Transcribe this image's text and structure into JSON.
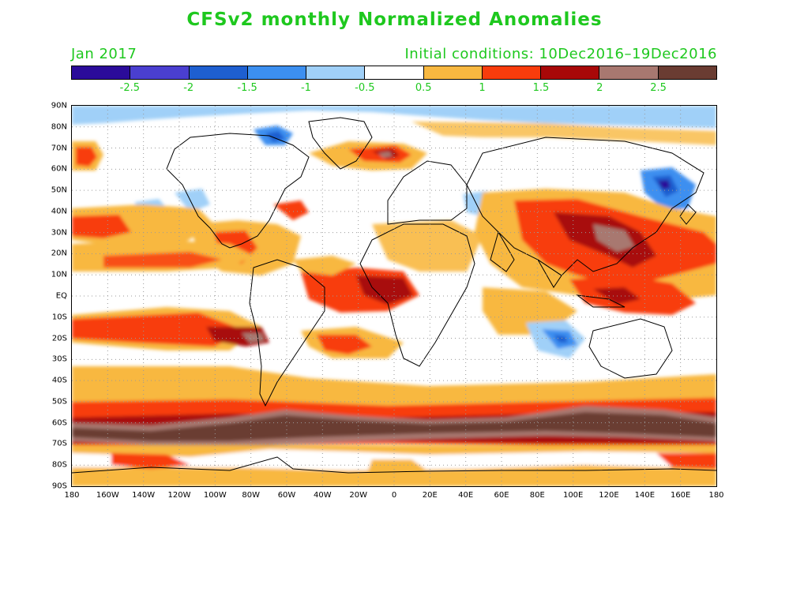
{
  "title": "CFSv2 monthly Normalized Anomalies",
  "valid_month": "Jan 2017",
  "initial_conditions": "Initial conditions: 10Dec2016–19Dec2016",
  "colorbar": {
    "colors": [
      "#2b0b9a",
      "#4a3fd0",
      "#1e5fd0",
      "#3c8ff0",
      "#a0d0f8",
      "#ffffff",
      "#f8b840",
      "#f83c0c",
      "#a80808",
      "#a87870",
      "#6a3c32"
    ],
    "labels": [
      "-2.5",
      "-2",
      "-1.5",
      "-1",
      "-0.5",
      "0.5",
      "1",
      "1.5",
      "2",
      "2.5"
    ]
  },
  "lat_labels": [
    "90N",
    "80N",
    "70N",
    "60N",
    "50N",
    "40N",
    "30N",
    "20N",
    "10N",
    "EQ",
    "10S",
    "20S",
    "30S",
    "40S",
    "50S",
    "60S",
    "70S",
    "80S",
    "90S"
  ],
  "lon_labels": [
    "180",
    "160W",
    "140W",
    "120W",
    "100W",
    "80W",
    "60W",
    "40W",
    "20W",
    "0",
    "20E",
    "40E",
    "60E",
    "80E",
    "100E",
    "120E",
    "140E",
    "160E",
    "180"
  ],
  "colors": {
    "title_green": "#1ec81e",
    "orange": "#f8b840",
    "red": "#f83c0c",
    "darkred": "#a80808",
    "brown": "#6a3c32",
    "tan": "#a87870",
    "lightblue": "#a0d0f8",
    "blue": "#3c8ff0",
    "medblue": "#1e5fd0",
    "navy": "#2b0b9a"
  }
}
